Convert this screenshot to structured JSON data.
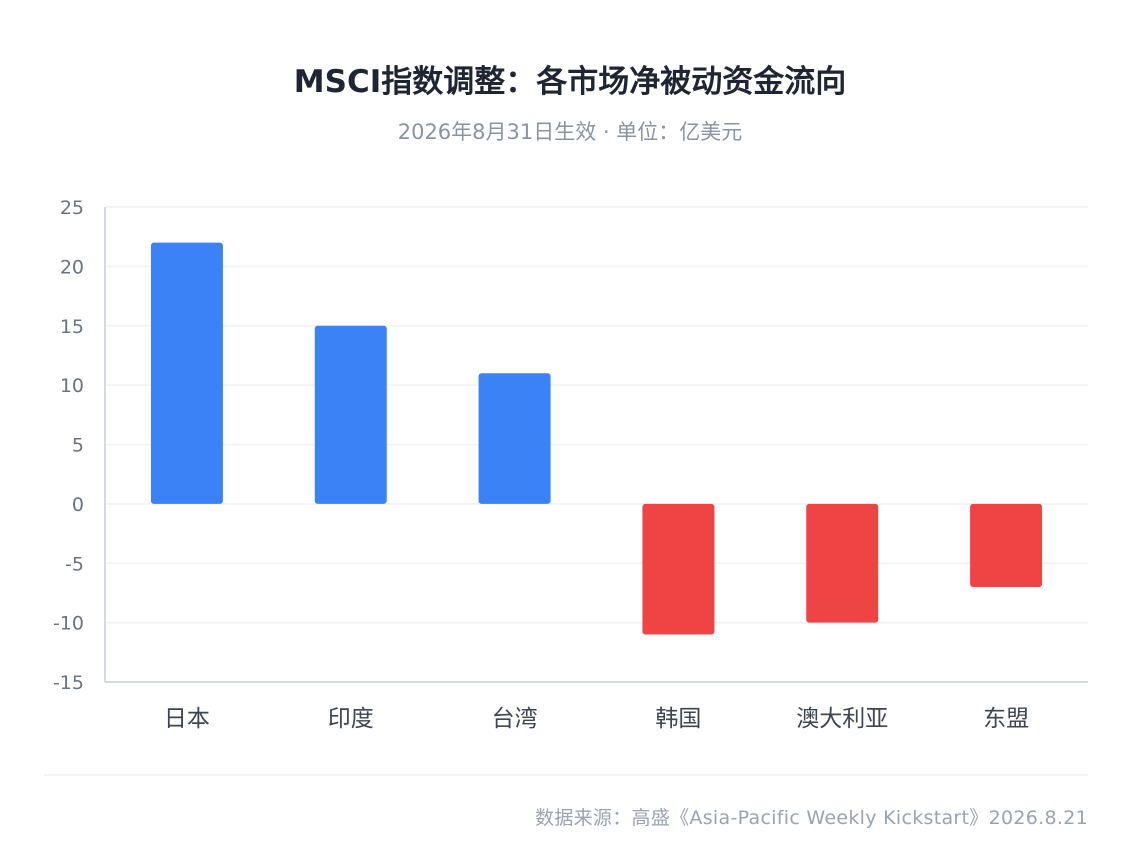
{
  "chart_data": {
    "type": "bar",
    "title": "MSCI指数调整：各市场净被动资金流向",
    "subtitle": "2026年8月31日生效 · 单位：亿美元",
    "categories": [
      "日本",
      "印度",
      "台湾",
      "韩国",
      "澳大利亚",
      "东盟"
    ],
    "values": [
      22,
      15,
      11,
      -11,
      -10,
      -7
    ],
    "xlabel": "",
    "ylabel": "",
    "ylim": [
      -15,
      25
    ],
    "yticks": [
      25,
      20,
      15,
      10,
      5,
      0,
      -5,
      -10,
      -15
    ],
    "grid": true,
    "legend": "none",
    "colors": {
      "positive": "#3b82f6",
      "negative": "#ef4444",
      "grid": "#f2f4f7",
      "axis": "#c9ced6",
      "tick_label": "#6b7380",
      "category_label": "#3d4452"
    }
  },
  "source": "数据来源：高盛《Asia-Pacific Weekly Kickstart》2026.8.21"
}
